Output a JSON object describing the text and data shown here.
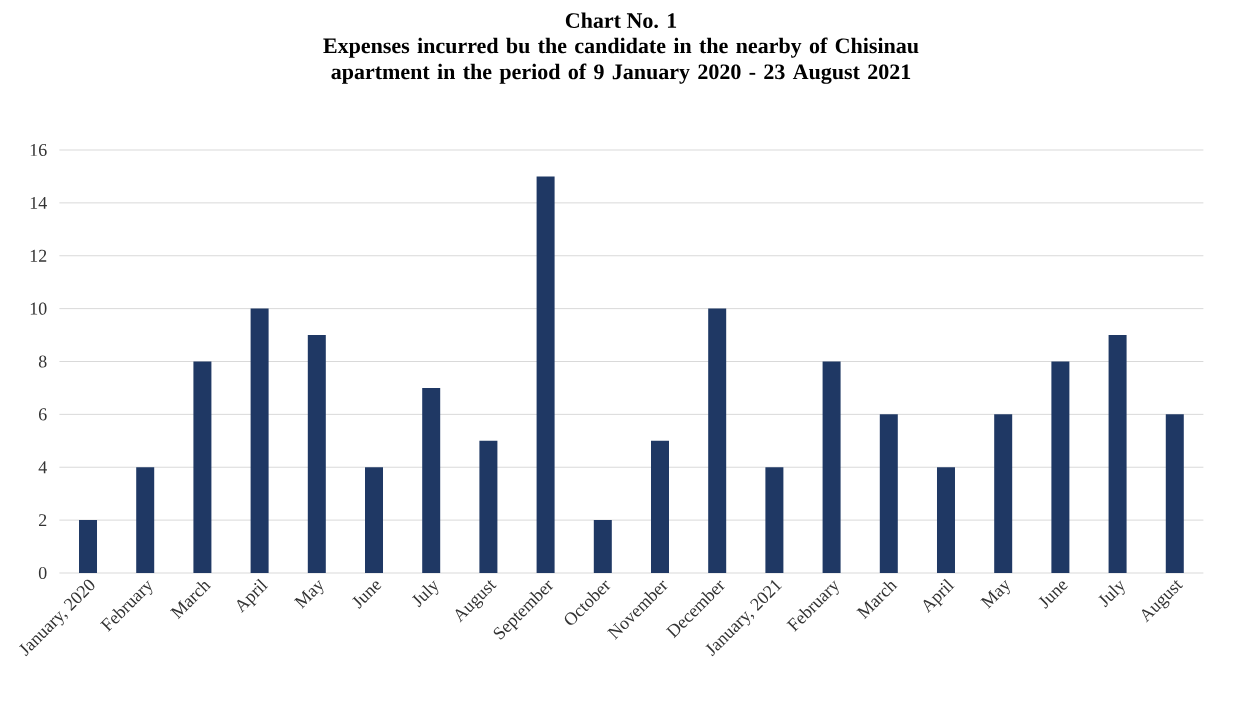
{
  "chart_data": {
    "type": "bar",
    "title": "Chart No. 1",
    "subtitle": "Expenses incurred bu the candidate in the nearby of Chisinau apartment in the period of 9 January 2020 - 23 August 2021",
    "categories": [
      "January, 2020",
      "February",
      "March",
      "April",
      "May",
      "June",
      "July",
      "August",
      "September",
      "October",
      "November",
      "December",
      "January, 2021",
      "February",
      "March",
      "April",
      "May",
      "June",
      "July",
      "August"
    ],
    "values": [
      2,
      4,
      8,
      10,
      9,
      4,
      7,
      5,
      15,
      2,
      5,
      10,
      4,
      8,
      6,
      4,
      6,
      8,
      9,
      6
    ],
    "color": "#1f3864",
    "ylim": [
      0,
      16
    ],
    "yticks": [
      0,
      2,
      4,
      6,
      8,
      10,
      12,
      14,
      16
    ],
    "grid": "y"
  }
}
